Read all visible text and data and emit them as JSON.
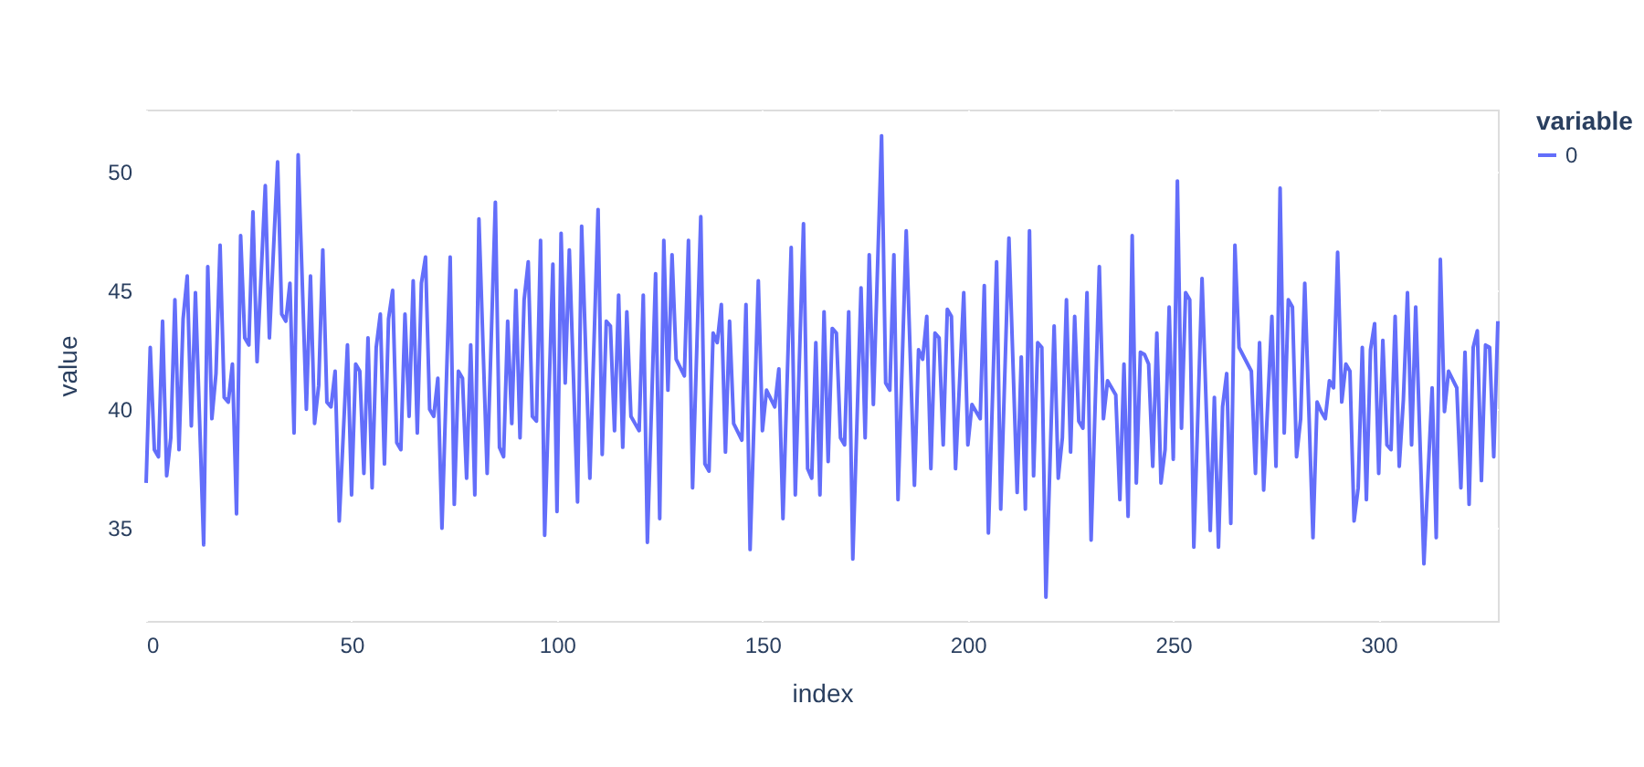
{
  "chart_data": {
    "type": "line",
    "xlabel": "index",
    "ylabel": "value",
    "legend_title": "variable",
    "xlim": [
      0,
      329
    ],
    "ylim": [
      31.1,
      52.6
    ],
    "xticks": [
      0,
      50,
      100,
      150,
      200,
      250,
      300
    ],
    "yticks": [
      35,
      40,
      45,
      50
    ],
    "grid": true,
    "legend": "top right",
    "line_style": "solid",
    "series": [
      {
        "name": "0",
        "color": "#636efa",
        "x": [
          0,
          1,
          2,
          3,
          4,
          5,
          6,
          7,
          8,
          9,
          10,
          11,
          12,
          14,
          15,
          16,
          17,
          18,
          19,
          20,
          21,
          22,
          23,
          24,
          25,
          26,
          27,
          29,
          30,
          32,
          33,
          34,
          35,
          36,
          37,
          39,
          40,
          41,
          42,
          43,
          44,
          45,
          46,
          47,
          49,
          50,
          51,
          52,
          53,
          54,
          55,
          56,
          57,
          58,
          59,
          60,
          61,
          62,
          63,
          64,
          65,
          66,
          67,
          68,
          69,
          70,
          71,
          72,
          74,
          75,
          76,
          77,
          78,
          79,
          80,
          81,
          83,
          85,
          86,
          87,
          88,
          89,
          90,
          91,
          92,
          93,
          94,
          95,
          96,
          97,
          99,
          100,
          101,
          102,
          103,
          105,
          106,
          108,
          110,
          111,
          112,
          113,
          114,
          115,
          116,
          117,
          118,
          120,
          121,
          122,
          124,
          125,
          126,
          127,
          128,
          129,
          131,
          132,
          133,
          135,
          136,
          137,
          138,
          139,
          140,
          141,
          142,
          143,
          145,
          146,
          147,
          149,
          150,
          151,
          153,
          154,
          155,
          157,
          158,
          160,
          161,
          162,
          163,
          164,
          165,
          166,
          167,
          168,
          169,
          170,
          171,
          172,
          174,
          175,
          176,
          177,
          179,
          180,
          181,
          182,
          183,
          185,
          187,
          188,
          189,
          190,
          191,
          192,
          193,
          194,
          195,
          196,
          197,
          199,
          200,
          201,
          203,
          204,
          205,
          207,
          208,
          210,
          212,
          213,
          214,
          215,
          216,
          217,
          218,
          219,
          221,
          222,
          223,
          224,
          225,
          226,
          227,
          228,
          229,
          230,
          232,
          233,
          234,
          236,
          237,
          238,
          239,
          240,
          241,
          242,
          243,
          244,
          245,
          246,
          247,
          248,
          249,
          250,
          251,
          252,
          253,
          254,
          255,
          257,
          259,
          260,
          261,
          262,
          263,
          264,
          265,
          266,
          269,
          270,
          271,
          272,
          274,
          275,
          276,
          277,
          278,
          279,
          280,
          281,
          282,
          284,
          285,
          286,
          287,
          288,
          289,
          290,
          291,
          292,
          293,
          294,
          295,
          296,
          297,
          298,
          299,
          300,
          301,
          302,
          303,
          304,
          305,
          306,
          307,
          308,
          309,
          311,
          313,
          314,
          315,
          316,
          317,
          319,
          320,
          321,
          322,
          323,
          324,
          325,
          326,
          327,
          328,
          329
        ],
        "values": [
          36.9,
          42.6,
          38.3,
          38.0,
          43.7,
          37.2,
          38.8,
          44.6,
          38.3,
          43.8,
          45.6,
          39.3,
          44.9,
          34.3,
          46.0,
          39.6,
          41.5,
          46.9,
          40.5,
          40.3,
          41.9,
          35.6,
          47.3,
          43.0,
          42.7,
          48.3,
          42.0,
          49.4,
          43.0,
          50.4,
          44.0,
          43.7,
          45.3,
          39.0,
          50.7,
          40.0,
          45.6,
          39.4,
          41.0,
          46.7,
          40.3,
          40.1,
          41.6,
          35.3,
          42.7,
          36.4,
          41.9,
          41.6,
          37.3,
          43.0,
          36.7,
          42.6,
          44.0,
          37.7,
          43.8,
          45.0,
          38.6,
          38.3,
          44.0,
          39.7,
          45.4,
          39.0,
          45.3,
          46.4,
          40.0,
          39.7,
          41.3,
          35.0,
          46.4,
          36.0,
          41.6,
          41.3,
          37.1,
          42.7,
          36.4,
          48.0,
          37.3,
          48.7,
          38.4,
          38.0,
          43.7,
          39.4,
          45.0,
          38.8,
          44.6,
          46.2,
          39.7,
          39.5,
          47.1,
          34.7,
          46.1,
          35.7,
          47.4,
          41.1,
          46.7,
          36.1,
          47.7,
          37.1,
          48.4,
          38.1,
          43.7,
          43.5,
          39.1,
          44.8,
          38.4,
          44.1,
          39.7,
          39.1,
          44.8,
          34.4,
          45.7,
          35.4,
          47.1,
          40.8,
          46.5,
          42.1,
          41.4,
          47.1,
          36.7,
          48.1,
          37.7,
          37.4,
          43.2,
          42.8,
          44.4,
          38.2,
          43.7,
          39.4,
          38.7,
          44.4,
          34.1,
          45.4,
          39.1,
          40.8,
          40.1,
          41.7,
          35.4,
          46.8,
          36.4,
          47.8,
          37.5,
          37.1,
          42.8,
          36.4,
          44.1,
          37.8,
          43.4,
          43.2,
          38.8,
          38.5,
          44.1,
          33.7,
          45.1,
          38.8,
          46.5,
          40.2,
          51.5,
          41.1,
          40.8,
          46.5,
          36.2,
          47.5,
          36.8,
          42.5,
          42.1,
          43.9,
          37.5,
          43.2,
          43.0,
          38.5,
          44.2,
          43.9,
          37.5,
          44.9,
          38.5,
          40.2,
          39.6,
          45.2,
          34.8,
          46.2,
          35.8,
          47.2,
          36.5,
          42.2,
          35.8,
          47.5,
          37.2,
          42.8,
          42.6,
          32.1,
          43.5,
          37.1,
          38.8,
          44.6,
          38.2,
          43.9,
          39.5,
          39.2,
          44.9,
          34.5,
          46.0,
          39.6,
          41.2,
          40.6,
          36.2,
          41.9,
          35.5,
          47.3,
          36.9,
          42.4,
          42.3,
          41.9,
          37.6,
          43.2,
          36.9,
          38.3,
          44.3,
          37.9,
          49.6,
          39.2,
          44.9,
          44.6,
          34.2,
          45.5,
          34.9,
          40.5,
          34.2,
          40.1,
          41.5,
          35.2,
          46.9,
          42.6,
          41.6,
          37.3,
          42.8,
          36.6,
          43.9,
          37.6,
          49.3,
          39.0,
          44.6,
          44.3,
          38.0,
          39.6,
          45.3,
          34.6,
          40.3,
          39.9,
          39.6,
          41.2,
          40.9,
          46.6,
          40.3,
          41.9,
          41.6,
          35.3,
          36.7,
          42.6,
          36.2,
          42.5,
          43.6,
          37.3,
          42.9,
          38.5,
          38.3,
          43.9,
          37.6,
          40.4,
          44.9,
          38.5,
          44.3,
          33.5,
          40.9,
          34.6,
          46.3,
          39.9,
          41.6,
          40.9,
          36.7,
          42.4,
          36.0,
          42.6,
          43.3,
          37.0,
          42.7,
          42.6,
          38.0,
          43.7
        ]
      }
    ]
  }
}
